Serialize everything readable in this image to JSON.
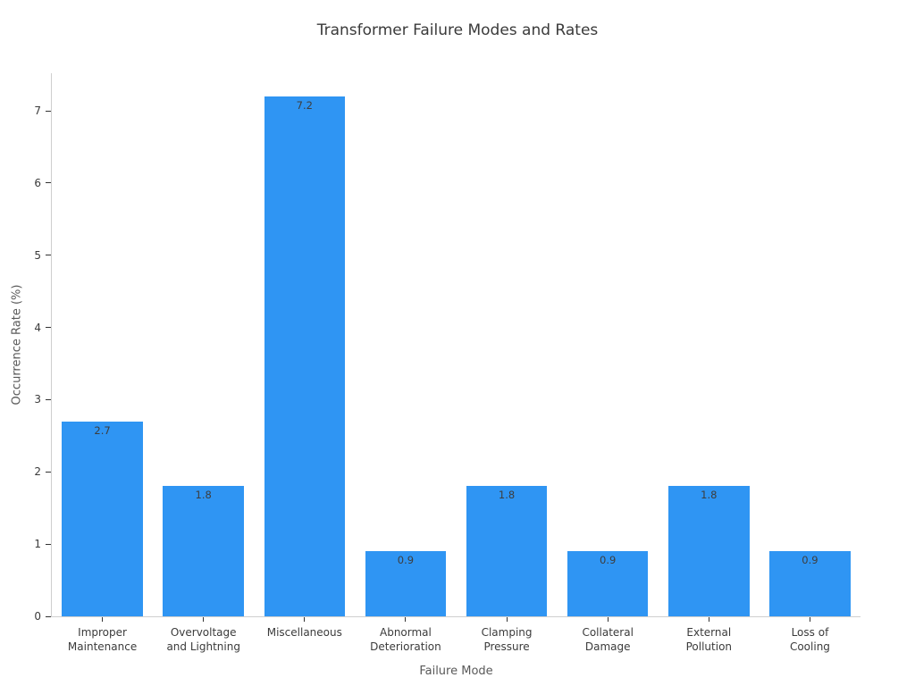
{
  "chart_data": {
    "type": "bar",
    "title": "Transformer Failure Modes and Rates",
    "xlabel": "Failure Mode",
    "ylabel": "Occurrence Rate (%)",
    "categories": [
      "Improper\nMaintenance",
      "Overvoltage\nand Lightning",
      "Miscellaneous",
      "Abnormal\nDeterioration",
      "Clamping\nPressure",
      "Collateral\nDamage",
      "External\nPollution",
      "Loss of\nCooling"
    ],
    "values": [
      2.7,
      1.8,
      7.2,
      0.9,
      1.8,
      0.9,
      1.8,
      0.9
    ],
    "bar_labels": [
      "2.7",
      "1.8",
      "7.2",
      "0.9",
      "1.8",
      "0.9",
      "1.8",
      "0.9"
    ],
    "yticks": [
      0,
      1,
      2,
      3,
      4,
      5,
      6,
      7
    ],
    "ylim": [
      0,
      7.52
    ],
    "bar_width_fraction": 0.8,
    "grid": false,
    "legend": null,
    "colors": {
      "bar": "#2f95f3",
      "title": "#3a3a3a",
      "tick_label": "#3b3b3b",
      "axis_title": "#595959",
      "bar_value_label": "#3d3d3d",
      "spine": "#cfcfcf",
      "tick_mark": "#333333",
      "background": "#ffffff"
    }
  }
}
